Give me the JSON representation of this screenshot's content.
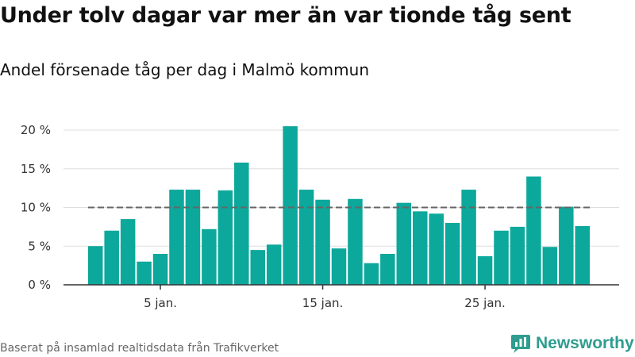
{
  "header": {
    "title": "Under tolv dagar var mer än var tionde tåg sent",
    "subtitle": "Andel försenade tåg per dag i Malmö kommun"
  },
  "footer": {
    "caption": "Baserat på insamlad realtidsdata från Trafikverket",
    "brand": "Newsworthy"
  },
  "colors": {
    "bar": "#0ca89b",
    "reference_line": "#666666",
    "grid": "#dddddd",
    "axis": "#333333",
    "brand": "#2e9d8f"
  },
  "chart_data": {
    "type": "bar",
    "x": [
      1,
      2,
      3,
      4,
      5,
      6,
      7,
      8,
      9,
      10,
      11,
      12,
      13,
      14,
      15,
      16,
      17,
      18,
      19,
      20,
      21,
      22,
      23,
      24,
      25,
      26,
      27,
      28,
      29,
      30,
      31
    ],
    "values": [
      5.0,
      7.0,
      8.5,
      3.0,
      4.0,
      12.3,
      12.3,
      7.2,
      12.2,
      15.8,
      4.5,
      5.2,
      20.5,
      12.3,
      11.0,
      4.7,
      11.1,
      2.8,
      4.0,
      10.6,
      9.5,
      9.2,
      8.0,
      12.3,
      3.7,
      7.0,
      7.5,
      14.0,
      4.9,
      10.1,
      7.6
    ],
    "reference_value": 10,
    "yticks": [
      0,
      5,
      10,
      15,
      20
    ],
    "ytick_labels": [
      "0 %",
      "5 %",
      "10 %",
      "15 %",
      "20 %"
    ],
    "xticks": [
      5,
      15,
      25
    ],
    "xtick_labels": [
      "5 jan.",
      "15 jan.",
      "25 jan."
    ],
    "ylim": [
      0,
      20.5
    ],
    "grid": true,
    "legend": "none"
  }
}
